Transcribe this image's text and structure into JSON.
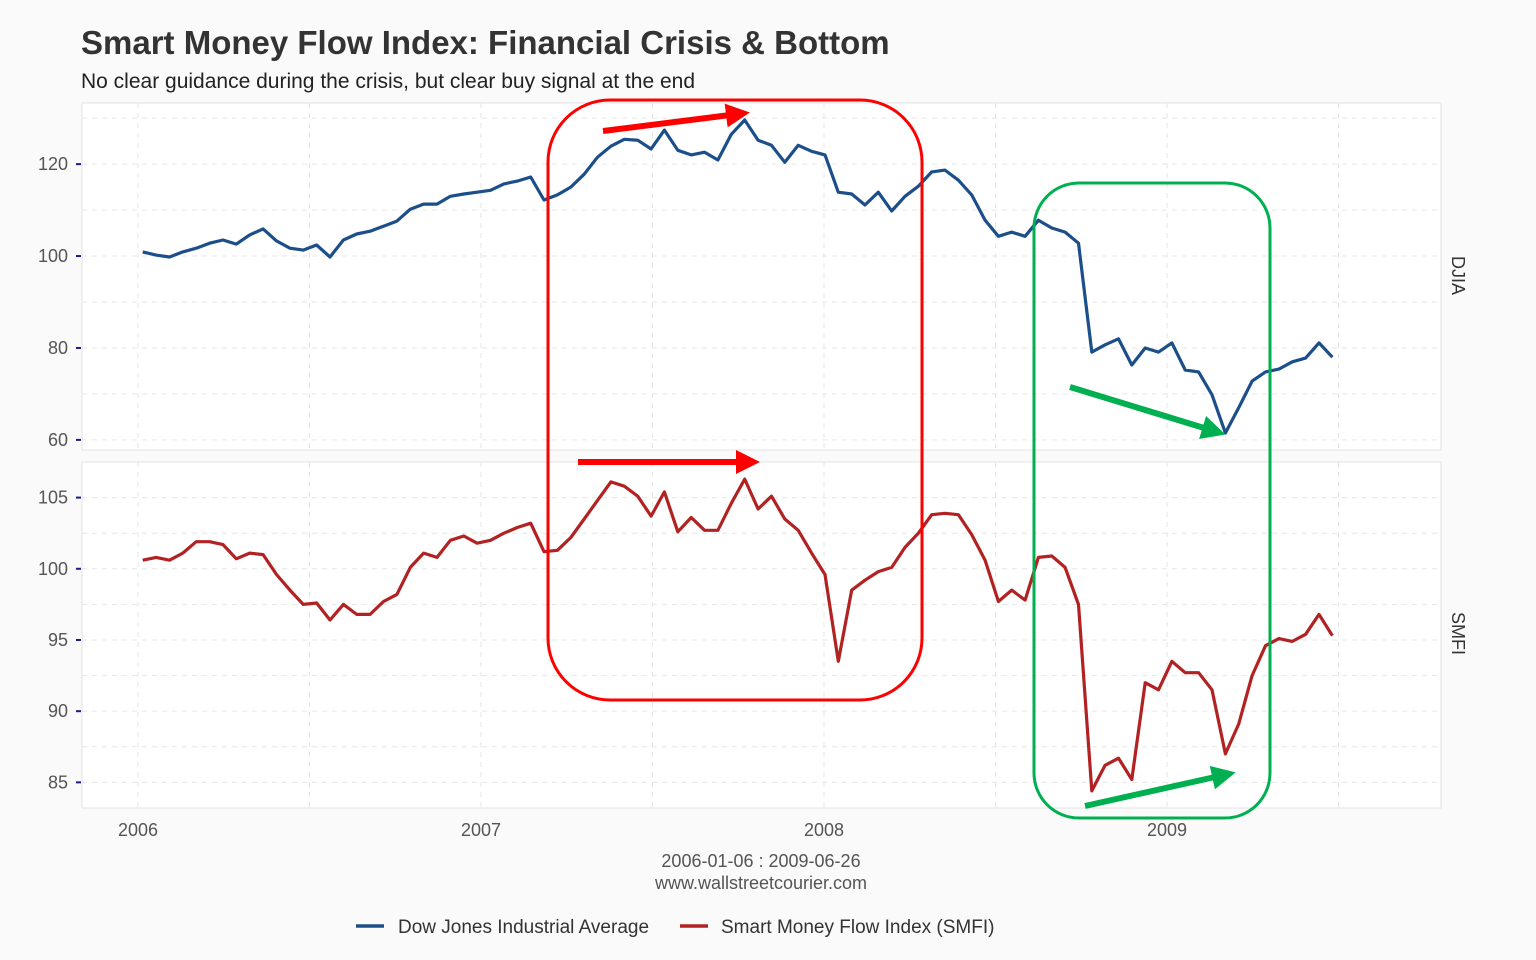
{
  "chart_data": {
    "type": "line",
    "title": "Smart Money Flow Index: Financial Crisis & Bottom",
    "subtitle": "No clear guidance during the crisis, but clear buy signal at the end",
    "x": {
      "start": "2006-01-06",
      "end": "2009-06-26",
      "ticks": [
        "2006",
        "2007",
        "2008",
        "2009"
      ]
    },
    "caption": [
      "2006-01-06 : 2009-06-26",
      "www.wallstreetcourier.com"
    ],
    "grid": true,
    "legend_position": "bottom",
    "panels": [
      {
        "facet_label": "DJIA",
        "series_name": "Dow Jones Industrial Average",
        "color": "#1c4f8a",
        "ylim": [
          57.8,
          133.3
        ],
        "yticks": [
          "60",
          "80",
          "100",
          "120"
        ],
        "values": [
          100.9,
          100.2,
          99.8,
          100.9,
          101.7,
          102.8,
          103.5,
          102.6,
          104.6,
          105.9,
          103.3,
          101.7,
          101.3,
          102.4,
          99.8,
          103.5,
          104.8,
          105.4,
          106.5,
          107.6,
          110.2,
          111.3,
          111.3,
          113.0,
          113.5,
          113.9,
          114.3,
          115.7,
          116.3,
          117.2,
          112.2,
          113.3,
          115.0,
          117.8,
          121.5,
          123.9,
          125.4,
          125.2,
          123.3,
          127.4,
          123.0,
          122.0,
          122.6,
          120.9,
          126.5,
          129.6,
          125.2,
          124.1,
          120.4,
          124.1,
          122.8,
          122.0,
          113.9,
          113.5,
          111.1,
          113.9,
          109.8,
          113.0,
          115.2,
          118.3,
          118.7,
          116.5,
          113.3,
          107.8,
          104.3,
          105.2,
          104.3,
          107.8,
          106.1,
          105.2,
          102.8,
          79.1,
          80.7,
          82.0,
          76.3,
          80.0,
          79.1,
          81.1,
          75.2,
          74.8,
          69.8,
          61.5,
          67.0,
          72.8,
          74.8,
          75.4,
          77.0,
          77.8,
          81.1,
          78.0
        ]
      },
      {
        "facet_label": "SMFI",
        "series_name": "Smart Money Flow Index (SMFI)",
        "color": "#b22222",
        "ylim": [
          83.2,
          107.5
        ],
        "yticks": [
          "85",
          "90",
          "95",
          "100",
          "105"
        ],
        "values": [
          100.6,
          100.8,
          100.6,
          101.1,
          101.9,
          101.9,
          101.7,
          100.7,
          101.1,
          101.0,
          99.6,
          98.5,
          97.5,
          97.6,
          96.4,
          97.5,
          96.8,
          96.8,
          97.7,
          98.2,
          100.1,
          101.1,
          100.8,
          102.0,
          102.3,
          101.8,
          102.0,
          102.5,
          102.9,
          103.2,
          101.2,
          101.3,
          102.2,
          103.5,
          104.8,
          106.1,
          105.8,
          105.1,
          103.7,
          105.4,
          102.6,
          103.6,
          102.7,
          102.7,
          104.6,
          106.3,
          104.2,
          105.1,
          103.5,
          102.7,
          101.1,
          99.6,
          93.5,
          98.5,
          99.2,
          99.8,
          100.1,
          101.5,
          102.5,
          103.8,
          103.9,
          103.8,
          102.4,
          100.6,
          97.7,
          98.5,
          97.8,
          100.8,
          100.9,
          100.1,
          97.5,
          84.4,
          86.2,
          86.7,
          85.2,
          92.0,
          91.5,
          93.5,
          92.7,
          92.7,
          91.5,
          87.0,
          89.1,
          92.5,
          94.6,
          95.1,
          94.9,
          95.4,
          96.8,
          95.3
        ]
      }
    ]
  },
  "annotations": {
    "red_color": "#ff0000",
    "green_color": "#00b050"
  }
}
